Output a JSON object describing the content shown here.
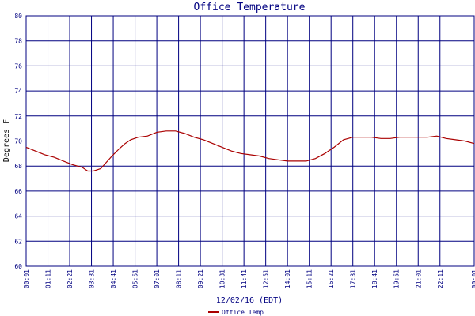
{
  "chart_data": {
    "type": "line",
    "title": "Office Temperature",
    "xlabel": "12/02/16 (EDT)",
    "ylabel": "Degrees F",
    "ylim": [
      60,
      80
    ],
    "y_ticks": [
      60,
      62,
      64,
      66,
      68,
      70,
      72,
      74,
      76,
      78,
      80
    ],
    "x_tick_labels": [
      "00:01",
      "01:11",
      "02:21",
      "03:31",
      "04:41",
      "05:51",
      "07:01",
      "08:11",
      "09:21",
      "10:31",
      "11:41",
      "12:51",
      "14:01",
      "15:11",
      "16:21",
      "17:31",
      "18:41",
      "19:51",
      "21:01",
      "22:11",
      "00:01"
    ],
    "grid": true,
    "legend_position": "bottom-left",
    "series": [
      {
        "name": "Office Temp",
        "color": "#aa0000",
        "x_hours": [
          0,
          0.5,
          1,
          1.5,
          2,
          2.5,
          3,
          3.3,
          3.6,
          4,
          4.3,
          4.6,
          5,
          5.3,
          5.6,
          6,
          6.5,
          7,
          7.5,
          8,
          8.5,
          9,
          9.5,
          10,
          10.5,
          11,
          11.5,
          12,
          12.5,
          13,
          13.5,
          14,
          14.5,
          15,
          15.5,
          16,
          16.5,
          17,
          17.5,
          18,
          18.5,
          19,
          19.5,
          20,
          20.5,
          21,
          21.5,
          22,
          22.5,
          23,
          23.5,
          24
        ],
        "values": [
          69.5,
          69.2,
          68.9,
          68.7,
          68.4,
          68.1,
          67.9,
          67.6,
          67.6,
          67.8,
          68.3,
          68.8,
          69.4,
          69.8,
          70.1,
          70.3,
          70.4,
          70.7,
          70.8,
          70.8,
          70.6,
          70.3,
          70.1,
          69.8,
          69.5,
          69.2,
          69.0,
          68.9,
          68.8,
          68.6,
          68.5,
          68.4,
          68.4,
          68.4,
          68.6,
          69.0,
          69.5,
          70.1,
          70.3,
          70.3,
          70.3,
          70.2,
          70.2,
          70.3,
          70.3,
          70.3,
          70.3,
          70.4,
          70.2,
          70.1,
          70.0,
          69.8
        ]
      }
    ]
  }
}
